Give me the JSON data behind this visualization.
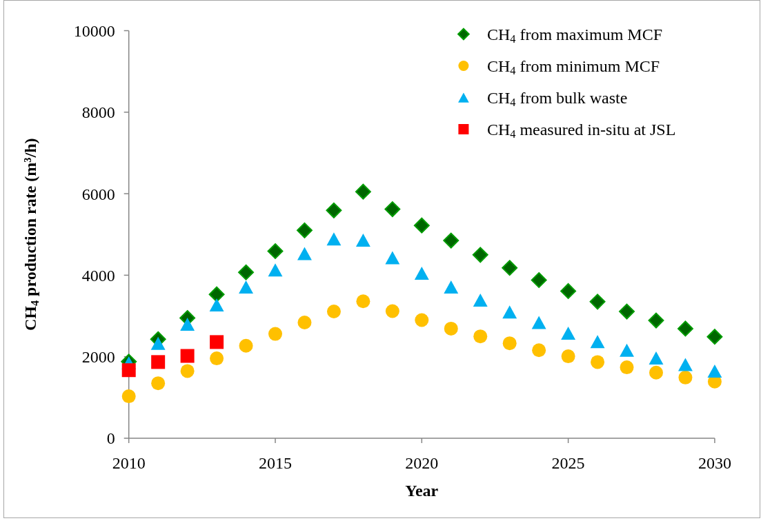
{
  "chart_data": {
    "type": "scatter",
    "xlabel": "Year",
    "ylabel": "CH$_{4}$ production rate (m³/h)",
    "x": [
      2010,
      2011,
      2012,
      2013,
      2014,
      2015,
      2016,
      2017,
      2018,
      2019,
      2020,
      2021,
      2022,
      2023,
      2024,
      2025,
      2026,
      2027,
      2028,
      2029,
      2030
    ],
    "xlim": [
      2010,
      2030
    ],
    "xticks": [
      2010,
      2015,
      2020,
      2025,
      2030
    ],
    "ylim": [
      0,
      10000
    ],
    "yticks": [
      0,
      2000,
      4000,
      6000,
      8000,
      10000
    ],
    "legend": "top right",
    "series": [
      {
        "name": "CH$_{4}$ from maximum MCF",
        "color": "#006600",
        "marker": "diamond",
        "values": [
          1880,
          2430,
          2950,
          3530,
          4070,
          4590,
          5100,
          5590,
          6050,
          5620,
          5220,
          4850,
          4500,
          4180,
          3880,
          3610,
          3350,
          3110,
          2890,
          2690,
          2490
        ]
      },
      {
        "name": "CH$_{4}$ from minimum MCF",
        "color": "#ffc000",
        "marker": "circle",
        "values": [
          1030,
          1350,
          1650,
          1960,
          2270,
          2560,
          2840,
          3110,
          3360,
          3120,
          2900,
          2690,
          2500,
          2330,
          2160,
          2010,
          1870,
          1740,
          1610,
          1490,
          1390
        ]
      },
      {
        "name": "CH$_{4}$ from bulk waste",
        "color": "#00b0f0",
        "marker": "triangle",
        "values": [
          1850,
          2330,
          2800,
          3270,
          3710,
          4130,
          4530,
          4890,
          4860,
          4430,
          4050,
          3710,
          3390,
          3100,
          2840,
          2580,
          2370,
          2160,
          1970,
          1810,
          1650
        ]
      },
      {
        "name": "CH$_{4}$ measured in-situ at JSL",
        "color": "#ff0000",
        "marker": "square",
        "x": [
          2010,
          2011,
          2012,
          2013
        ],
        "values": [
          1670,
          1870,
          2020,
          2360
        ]
      }
    ]
  }
}
